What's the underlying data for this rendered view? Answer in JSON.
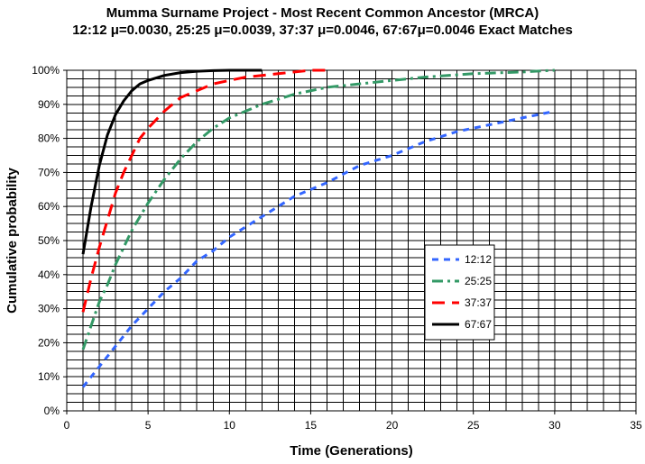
{
  "chart_data": {
    "type": "line",
    "title": "Mumma Surname Project - Most Recent Common Ancestor (MRCA)",
    "subtitle": "12:12 μ=0.0030,  25:25 μ=0.0039, 37:37 μ=0.0046, 67:67μ=0.0046  Exact Matches",
    "xlabel": "Time (Generations)",
    "ylabel": "Cumulative probability",
    "xlim": [
      0,
      35
    ],
    "ylim": [
      0,
      1
    ],
    "x_ticks": [
      "0",
      "5",
      "10",
      "15",
      "20",
      "25",
      "30",
      "35"
    ],
    "y_ticks": [
      "0%",
      "10%",
      "20%",
      "30%",
      "40%",
      "50%",
      "60%",
      "70%",
      "80%",
      "90%",
      "100%"
    ],
    "grid": true,
    "legend_position": "right",
    "series": [
      {
        "name": "12:12",
        "color": "#3366ff",
        "dash": "short-dash",
        "x": [
          1,
          2,
          3,
          4,
          5,
          6,
          7,
          8,
          9,
          10,
          12,
          14,
          16,
          18,
          20,
          22,
          24,
          26,
          28,
          30
        ],
        "y": [
          0.07,
          0.13,
          0.19,
          0.25,
          0.3,
          0.35,
          0.39,
          0.44,
          0.47,
          0.51,
          0.57,
          0.63,
          0.67,
          0.72,
          0.75,
          0.79,
          0.82,
          0.84,
          0.86,
          0.88
        ]
      },
      {
        "name": "25:25",
        "color": "#339966",
        "dash": "dash-dot",
        "x": [
          1,
          1.5,
          2,
          2.5,
          3,
          3.5,
          4,
          5,
          6,
          7,
          8,
          9,
          10,
          12,
          14,
          16,
          18,
          20,
          22,
          25,
          28,
          30
        ],
        "y": [
          0.18,
          0.25,
          0.32,
          0.37,
          0.43,
          0.48,
          0.53,
          0.61,
          0.68,
          0.74,
          0.79,
          0.83,
          0.86,
          0.9,
          0.93,
          0.95,
          0.96,
          0.97,
          0.98,
          0.99,
          0.995,
          1.0
        ]
      },
      {
        "name": "37:37",
        "color": "#ff0000",
        "dash": "long-dash",
        "x": [
          1,
          1.5,
          2,
          2.5,
          3,
          3.5,
          4,
          4.5,
          5,
          6,
          7,
          8,
          9,
          10,
          11,
          12,
          13,
          14,
          15,
          16
        ],
        "y": [
          0.29,
          0.39,
          0.48,
          0.56,
          0.64,
          0.7,
          0.75,
          0.8,
          0.83,
          0.88,
          0.92,
          0.94,
          0.96,
          0.97,
          0.98,
          0.985,
          0.99,
          0.995,
          1.0,
          1.0
        ]
      },
      {
        "name": "67:67",
        "color": "#000000",
        "dash": "solid",
        "x": [
          1,
          1.5,
          2,
          2.5,
          3,
          3.5,
          4,
          4.5,
          5,
          6,
          7,
          8,
          9,
          10,
          11,
          12
        ],
        "y": [
          0.46,
          0.6,
          0.72,
          0.81,
          0.87,
          0.91,
          0.94,
          0.96,
          0.97,
          0.985,
          0.993,
          0.997,
          0.999,
          1.0,
          1.0,
          1.0
        ]
      }
    ]
  }
}
